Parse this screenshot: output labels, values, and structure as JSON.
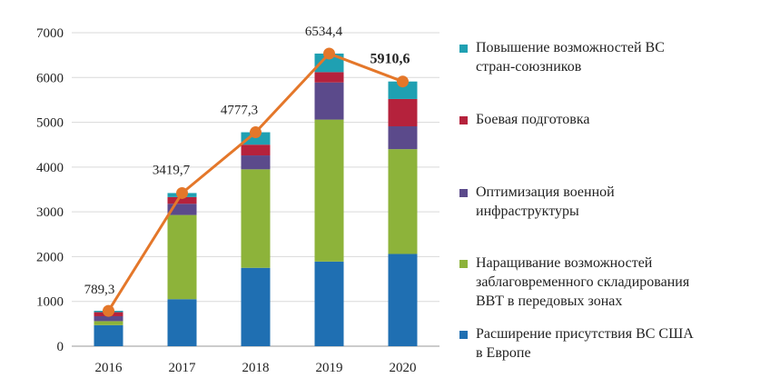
{
  "chart_data": {
    "type": "bar",
    "categories": [
      "2016",
      "2017",
      "2018",
      "2019",
      "2020"
    ],
    "ylim": [
      0,
      7000
    ],
    "yticks": [
      "0",
      "1000",
      "2000",
      "3000",
      "4000",
      "5000",
      "6000",
      "7000"
    ],
    "grid": true,
    "legend_position": "right",
    "series": [
      {
        "name": "Расширение присутствия ВС США\nв Европе",
        "color": "#1f6fb2",
        "values": [
          470,
          1050,
          1750,
          1890,
          2060
        ]
      },
      {
        "name": "Наращивание возможностей\nзаблаговременного складирования\nВВТ в передовых зонах",
        "color": "#8db33a",
        "values": [
          90,
          1880,
          2200,
          3170,
          2340
        ]
      },
      {
        "name": "Оптимизация военной\nинфраструктуры",
        "color": "#5b4a8b",
        "values": [
          110,
          250,
          310,
          830,
          510
        ]
      },
      {
        "name": "Боевая подготовка",
        "color": "#b5223c",
        "values": [
          90,
          150,
          240,
          230,
          610
        ]
      },
      {
        "name": "Повышение возможностей ВС\nстран-союзников",
        "color": "#1fa0b2",
        "values": [
          30,
          90,
          277.3,
          414.4,
          390.6
        ]
      }
    ],
    "totals": {
      "values": [
        789.3,
        3419.7,
        4777.3,
        6534.4,
        5910.6
      ],
      "labels": [
        "789,3",
        "3419,7",
        "4777,3",
        "6534,4",
        "5910,6"
      ],
      "line_color": "#e4772a"
    }
  }
}
